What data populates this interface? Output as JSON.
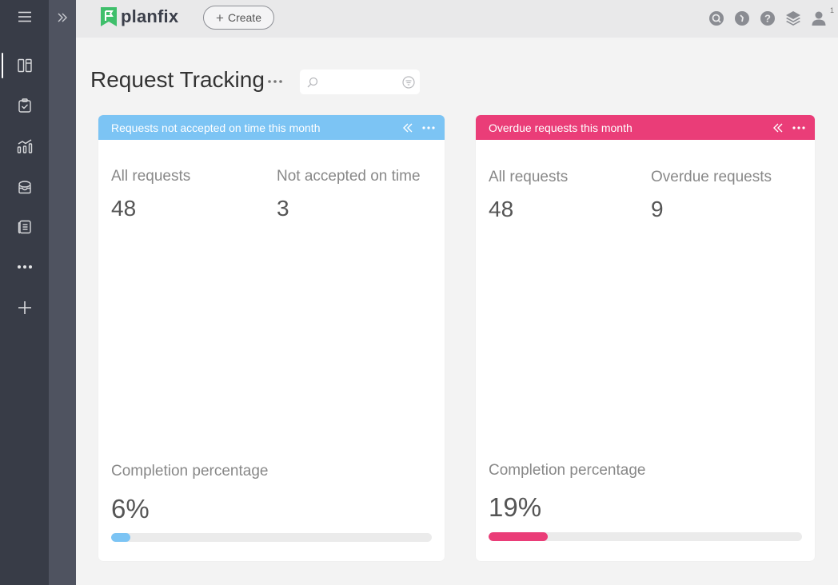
{
  "app": {
    "logo_text": "planfix",
    "create_label": "Create",
    "notification_count": "1"
  },
  "colors": {
    "sidebar_bg": "#383c47",
    "brand_green": "#3fbf6b",
    "card1_accent": "#7cc4f4",
    "card2_accent": "#ea3d78"
  },
  "sidebar": {
    "items": [
      {
        "icon": "menu-icon"
      },
      {
        "icon": "panels-icon",
        "active": true
      },
      {
        "icon": "tasks-icon"
      },
      {
        "icon": "analytics-icon"
      },
      {
        "icon": "inbox-icon"
      },
      {
        "icon": "documents-icon"
      },
      {
        "icon": "more-icon"
      },
      {
        "icon": "plus-icon"
      }
    ]
  },
  "topbar_icons": [
    "search-icon",
    "clock-icon",
    "help-icon",
    "layers-icon",
    "user-icon"
  ],
  "page": {
    "title": "Request Tracking",
    "search_placeholder": ""
  },
  "cards": [
    {
      "title": "Requests not accepted on time this month",
      "metric1_label": "All requests",
      "metric1_value": "48",
      "metric2_label": "Not accepted on time",
      "metric2_value": "3",
      "completion_label": "Completion percentage",
      "completion_value": "6%",
      "completion_fraction": 0.06
    },
    {
      "title": "Overdue requests this month",
      "metric1_label": "All requests",
      "metric1_value": "48",
      "metric2_label": "Overdue requests",
      "metric2_value": "9",
      "completion_label": "Completion percentage",
      "completion_value": "19%",
      "completion_fraction": 0.19
    }
  ]
}
